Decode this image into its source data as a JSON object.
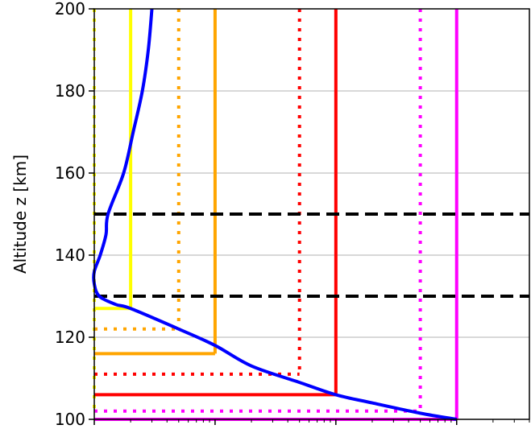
{
  "chart_data": {
    "type": "line",
    "title": "",
    "xlabel": "",
    "ylabel": "Altitude z [km]",
    "x_scale": "log",
    "x_tick_labels_visible": false,
    "xlim": [
      0.0001,
      0.4
    ],
    "ylim": [
      100,
      200
    ],
    "y_ticks": [
      100,
      120,
      140,
      160,
      180,
      200
    ],
    "grid": "horizontal",
    "profile": {
      "color": "#0000ff",
      "points": [
        [
          0.0003,
          200
        ],
        [
          0.00028,
          190
        ],
        [
          0.00025,
          180
        ],
        [
          0.00021,
          170
        ],
        [
          0.000175,
          160
        ],
        [
          0.00013,
          150
        ],
        [
          0.000125,
          145
        ],
        [
          0.000112,
          140
        ],
        [
          0.0001,
          136
        ],
        [
          0.0001,
          133
        ],
        [
          0.00011,
          130
        ],
        [
          0.00015,
          128
        ],
        [
          0.0002,
          127
        ],
        [
          0.0005,
          122
        ],
        [
          0.001,
          118
        ],
        [
          0.002,
          113
        ],
        [
          0.005,
          109
        ],
        [
          0.01,
          106
        ],
        [
          0.02,
          104
        ],
        [
          0.05,
          101.5
        ],
        [
          0.1,
          100
        ]
      ]
    },
    "reference_lines": [
      {
        "color": "#ffff00",
        "style": "dotted",
        "x": 0.0001,
        "h_y": 102
      },
      {
        "color": "#ffff00",
        "style": "solid",
        "x": 0.0002,
        "h_y": 127
      },
      {
        "color": "#ffa500",
        "style": "dotted",
        "x": 0.0005,
        "h_y": 122
      },
      {
        "color": "#ffa500",
        "style": "solid",
        "x": 0.001,
        "h_y": 116
      },
      {
        "color": "#ff0000",
        "style": "dotted",
        "x": 0.005,
        "h_y": 111
      },
      {
        "color": "#ff0000",
        "style": "solid",
        "x": 0.01,
        "h_y": 106
      },
      {
        "color": "#ff00ff",
        "style": "dotted",
        "x": 0.05,
        "h_y": 102
      },
      {
        "color": "#ff00ff",
        "style": "solid",
        "x": 0.1,
        "h_y": 100
      }
    ],
    "dashed_levels": {
      "color": "#000000",
      "values": [
        130,
        150
      ]
    }
  }
}
